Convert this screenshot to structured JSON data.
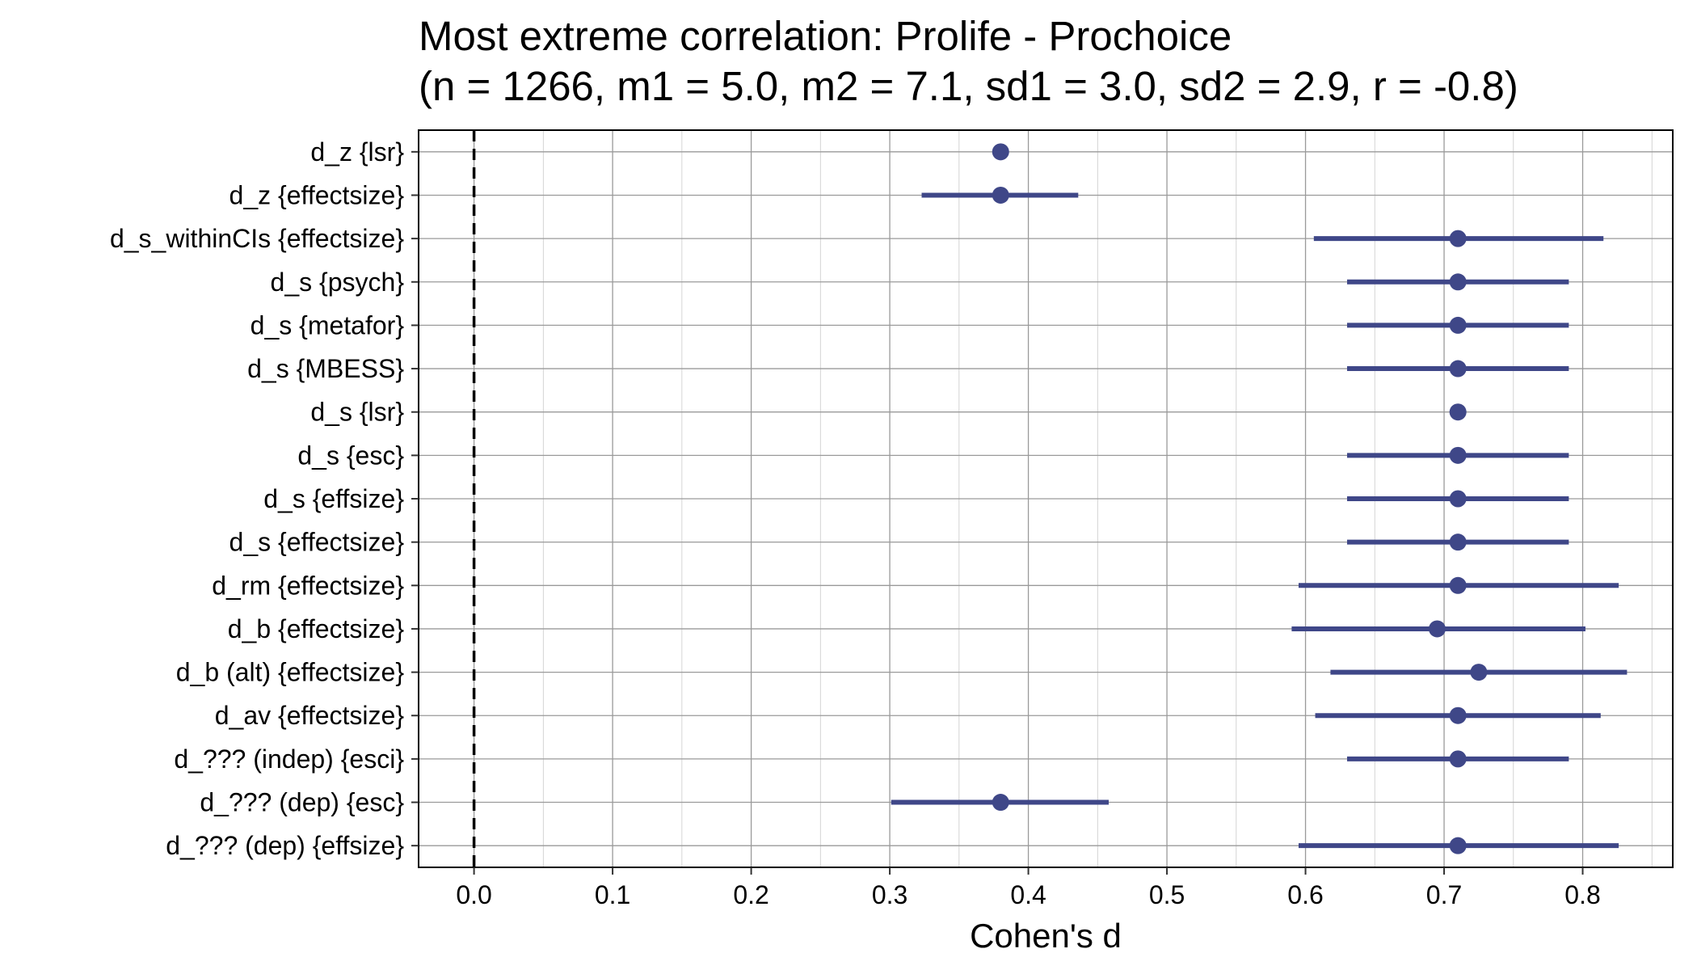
{
  "chart_data": {
    "type": "scatter",
    "title": "Most extreme correlation: Prolife - Prochoice",
    "subtitle": "(n = 1266, m1 = 5.0, m2 = 7.1, sd1 = 3.0, sd2 = 2.9, r = -0.8)",
    "xlabel": "Cohen's d",
    "ylabel": "",
    "xlim": [
      -0.04,
      0.865
    ],
    "x_ticks": [
      "0.0",
      "0.1",
      "0.2",
      "0.3",
      "0.4",
      "0.5",
      "0.6",
      "0.7",
      "0.8"
    ],
    "x_tick_values": [
      0.0,
      0.1,
      0.2,
      0.3,
      0.4,
      0.5,
      0.6,
      0.7,
      0.8
    ],
    "reference_line": {
      "x": 0,
      "style": "dashed"
    },
    "grid": true,
    "color": "#3f4788",
    "categories": [
      "d_z {lsr}",
      "d_z {effectsize}",
      "d_s_withinCIs {effectsize}",
      "d_s {psych}",
      "d_s {metafor}",
      "d_s {MBESS}",
      "d_s {lsr}",
      "d_s {esc}",
      "d_s {effsize}",
      "d_s {effectsize}",
      "d_rm {effectsize}",
      "d_b {effectsize}",
      "d_b (alt) {effectsize}",
      "d_av {effectsize}",
      "d_??? (indep) {esci}",
      "d_??? (dep) {esc}",
      "d_??? (dep) {effsize}"
    ],
    "estimates": [
      0.38,
      0.38,
      0.71,
      0.71,
      0.71,
      0.71,
      0.71,
      0.71,
      0.71,
      0.71,
      0.71,
      0.695,
      0.725,
      0.71,
      0.71,
      0.38,
      0.71
    ],
    "ci_lower": [
      null,
      0.323,
      0.606,
      0.63,
      0.63,
      0.63,
      null,
      0.63,
      0.63,
      0.63,
      0.595,
      0.59,
      0.618,
      0.607,
      0.63,
      0.301,
      0.595
    ],
    "ci_upper": [
      null,
      0.436,
      0.815,
      0.79,
      0.79,
      0.79,
      null,
      0.79,
      0.79,
      0.79,
      0.826,
      0.802,
      0.832,
      0.813,
      0.79,
      0.458,
      0.826
    ]
  }
}
